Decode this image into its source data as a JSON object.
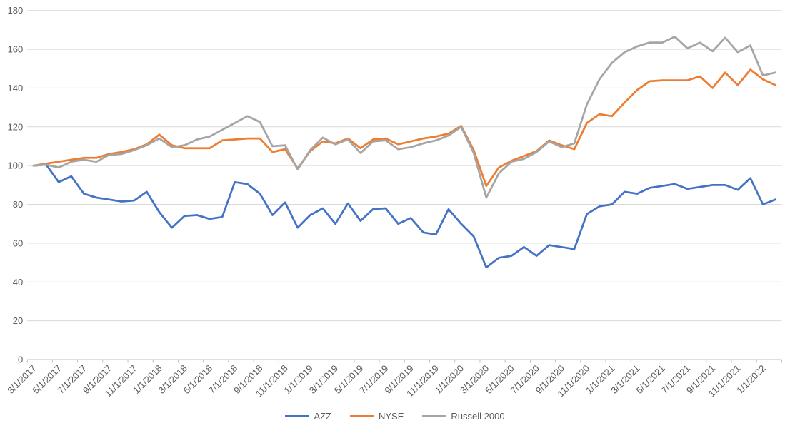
{
  "chart_data": {
    "type": "line",
    "title": "",
    "xlabel": "",
    "ylabel": "",
    "grid": true,
    "legend_position": "bottom",
    "x_tick_step": 2,
    "categories": [
      "3/1/2017",
      "4/1/2017",
      "5/1/2017",
      "6/1/2017",
      "7/1/2017",
      "8/1/2017",
      "9/1/2017",
      "10/1/2017",
      "11/1/2017",
      "12/1/2017",
      "1/1/2018",
      "2/1/2018",
      "3/1/2018",
      "4/1/2018",
      "5/1/2018",
      "6/1/2018",
      "7/1/2018",
      "8/1/2018",
      "9/1/2018",
      "10/1/2018",
      "11/1/2018",
      "12/1/2018",
      "1/1/2019",
      "2/1/2019",
      "3/1/2019",
      "4/1/2019",
      "5/1/2019",
      "6/1/2019",
      "7/1/2019",
      "8/1/2019",
      "9/1/2019",
      "10/1/2019",
      "11/1/2019",
      "12/1/2019",
      "1/1/2020",
      "2/1/2020",
      "3/1/2020",
      "4/1/2020",
      "5/1/2020",
      "6/1/2020",
      "7/1/2020",
      "8/1/2020",
      "9/1/2020",
      "10/1/2020",
      "11/1/2020",
      "12/1/2020",
      "1/1/2021",
      "2/1/2021",
      "3/1/2021",
      "4/1/2021",
      "5/1/2021",
      "6/1/2021",
      "7/1/2021",
      "8/1/2021",
      "9/1/2021",
      "10/1/2021",
      "11/1/2021",
      "12/1/2021",
      "1/1/2022",
      "2/1/2022"
    ],
    "series": [
      {
        "name": "AZZ",
        "color": "#4472C4",
        "values": [
          100,
          100.5,
          91.5,
          94.5,
          85.5,
          83.5,
          82.5,
          81.5,
          82,
          86.5,
          76,
          68,
          74,
          74.5,
          72.5,
          73.5,
          91.5,
          90.5,
          85.5,
          74.5,
          81,
          68,
          74.5,
          78,
          70,
          80.5,
          71.5,
          77.5,
          78,
          70,
          73,
          65.5,
          64.5,
          77.5,
          70,
          63.5,
          47.5,
          52.5,
          53.5,
          58,
          53.5,
          59,
          58,
          57,
          75,
          79,
          80,
          86.5,
          85.5,
          88.5,
          89.5,
          90.5,
          88,
          89,
          90,
          90,
          87.5,
          93.5,
          80,
          82.5
        ]
      },
      {
        "name": "NYSE",
        "color": "#ED7D31",
        "values": [
          100,
          101,
          102,
          103,
          104,
          104,
          106,
          107,
          108.5,
          111,
          116,
          110.5,
          109,
          109,
          109,
          113,
          113.5,
          114,
          114,
          107,
          108.5,
          98.5,
          107.5,
          112.5,
          111.5,
          114,
          109,
          113.5,
          114,
          111,
          112.5,
          114,
          115,
          116.5,
          120.5,
          108,
          89.5,
          99,
          102.5,
          105,
          107.5,
          113,
          110.5,
          108.5,
          122,
          126.5,
          125.5,
          132.5,
          139,
          143.5,
          144,
          144,
          144,
          146,
          140,
          148,
          141.5,
          149.5,
          144.5,
          141.5
        ]
      },
      {
        "name": "Russell 2000",
        "color": "#A5A5A5",
        "values": [
          100,
          100.5,
          99,
          102,
          103,
          102,
          105.5,
          106,
          108,
          110.5,
          114,
          109.5,
          110.5,
          113.5,
          115,
          118.5,
          122,
          125.5,
          122.5,
          110,
          110.5,
          98,
          108,
          114.5,
          111,
          113.5,
          106.5,
          112.5,
          113,
          108.5,
          109.5,
          111.5,
          113,
          115.5,
          120,
          106.5,
          83.5,
          96,
          102,
          103.5,
          107,
          112.5,
          109.5,
          111.5,
          131.5,
          144.5,
          153,
          158.5,
          161.5,
          163.5,
          163.5,
          166.5,
          160.5,
          163.5,
          159,
          166,
          158.5,
          162,
          146.5,
          148
        ]
      }
    ],
    "y_axis": {
      "min": 0,
      "max": 180,
      "step": 20,
      "tick_labels": [
        "0",
        "20",
        "40",
        "60",
        "80",
        "100",
        "120",
        "140",
        "160",
        "180"
      ]
    }
  },
  "legend": {
    "items": [
      {
        "label": "AZZ"
      },
      {
        "label": "NYSE"
      },
      {
        "label": "Russell 2000"
      }
    ]
  },
  "colors": {
    "background": "#FFFFFF",
    "gridline": "#D9D9D9",
    "axis_line": "#BFBFBF",
    "tick_text": "#595959",
    "series_azz": "#4472C4",
    "series_nyse": "#ED7D31",
    "series_russell": "#A5A5A5"
  }
}
